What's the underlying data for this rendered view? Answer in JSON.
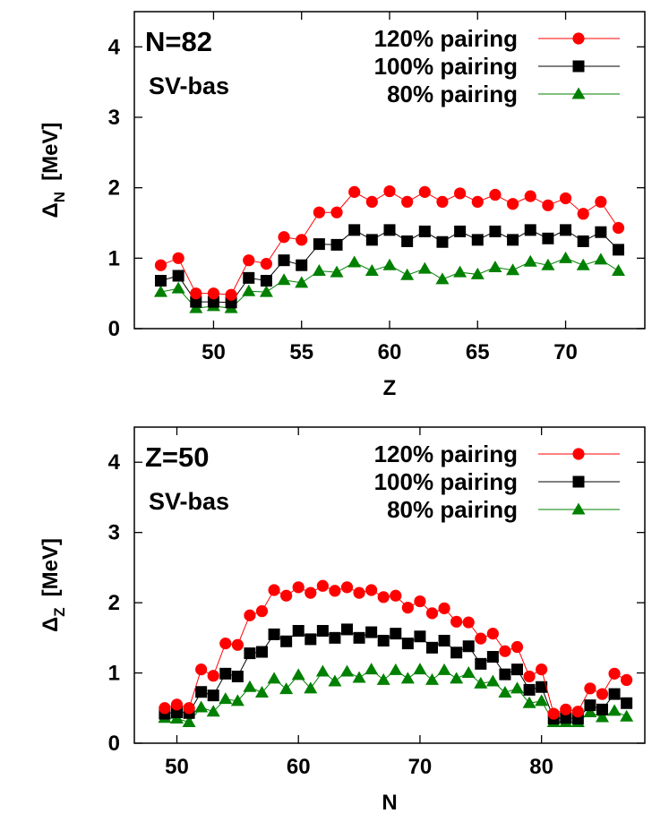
{
  "chart_data": [
    {
      "type": "line",
      "panel_label": "N=82",
      "panel_sublabel": "SV-bas",
      "xlabel": "Z",
      "ylabel_main": "Δ",
      "ylabel_sub": "N",
      "ylabel_unit": "[MeV]",
      "xlim": [
        45.5,
        74.5
      ],
      "ylim": [
        0,
        4.5
      ],
      "xticks": [
        50,
        55,
        60,
        65,
        70
      ],
      "yticks": [
        0,
        1,
        2,
        3,
        4
      ],
      "grid": false,
      "legend": "top-right",
      "x": [
        47,
        48,
        49,
        50,
        51,
        52,
        53,
        54,
        55,
        56,
        57,
        58,
        59,
        60,
        61,
        62,
        63,
        64,
        65,
        66,
        67,
        68,
        69,
        70,
        71,
        72,
        73
      ],
      "series": [
        {
          "name": "120% pairing",
          "color": "#ff0000",
          "marker": "circle",
          "values": [
            0.9,
            1.0,
            0.5,
            0.5,
            0.48,
            0.97,
            0.92,
            1.3,
            1.26,
            1.65,
            1.65,
            1.94,
            1.8,
            1.95,
            1.8,
            1.94,
            1.8,
            1.92,
            1.8,
            1.9,
            1.77,
            1.88,
            1.75,
            1.85,
            1.63,
            1.8,
            1.43
          ]
        },
        {
          "name": "100% pairing",
          "color": "#000000",
          "marker": "square",
          "values": [
            0.68,
            0.75,
            0.38,
            0.38,
            0.37,
            0.72,
            0.68,
            0.97,
            0.9,
            1.2,
            1.19,
            1.4,
            1.26,
            1.4,
            1.24,
            1.38,
            1.23,
            1.38,
            1.26,
            1.38,
            1.26,
            1.4,
            1.28,
            1.4,
            1.24,
            1.37,
            1.12
          ]
        },
        {
          "name": "80% pairing",
          "color": "#008000",
          "marker": "triangle",
          "values": [
            0.52,
            0.57,
            0.29,
            0.32,
            0.29,
            0.53,
            0.52,
            0.69,
            0.65,
            0.82,
            0.8,
            0.94,
            0.82,
            0.9,
            0.76,
            0.85,
            0.7,
            0.8,
            0.77,
            0.87,
            0.83,
            0.95,
            0.9,
            1.0,
            0.9,
            0.98,
            0.82
          ]
        }
      ]
    },
    {
      "type": "line",
      "panel_label": "Z=50",
      "panel_sublabel": "SV-bas",
      "xlabel": "N",
      "ylabel_main": "Δ",
      "ylabel_sub": "Z",
      "ylabel_unit": "[MeV]",
      "xlim": [
        46.5,
        88.5
      ],
      "ylim": [
        0,
        4.5
      ],
      "xticks": [
        50,
        60,
        70,
        80
      ],
      "yticks": [
        0,
        1,
        2,
        3,
        4
      ],
      "grid": false,
      "legend": "top-right",
      "x": [
        49,
        50,
        51,
        52,
        53,
        54,
        55,
        56,
        57,
        58,
        59,
        60,
        61,
        62,
        63,
        64,
        65,
        66,
        67,
        68,
        69,
        70,
        71,
        72,
        73,
        74,
        75,
        76,
        77,
        78,
        79,
        80,
        81,
        82,
        83,
        84,
        85,
        86,
        87
      ],
      "series": [
        {
          "name": "120% pairing",
          "color": "#ff0000",
          "marker": "circle",
          "values": [
            0.5,
            0.55,
            0.5,
            1.05,
            0.96,
            1.42,
            1.4,
            1.82,
            1.88,
            2.18,
            2.1,
            2.22,
            2.14,
            2.24,
            2.17,
            2.22,
            2.14,
            2.18,
            2.08,
            2.1,
            1.93,
            2.02,
            1.85,
            1.92,
            1.73,
            1.72,
            1.49,
            1.56,
            1.31,
            1.37,
            0.95,
            1.05,
            0.42,
            0.48,
            0.45,
            0.78,
            0.7,
            0.99,
            0.9
          ]
        },
        {
          "name": "100% pairing",
          "color": "#000000",
          "marker": "square",
          "values": [
            0.42,
            0.44,
            0.43,
            0.73,
            0.68,
            0.99,
            0.95,
            1.28,
            1.3,
            1.55,
            1.45,
            1.6,
            1.48,
            1.6,
            1.5,
            1.62,
            1.5,
            1.58,
            1.46,
            1.56,
            1.42,
            1.52,
            1.36,
            1.46,
            1.29,
            1.38,
            1.13,
            1.23,
            0.98,
            1.05,
            0.76,
            0.8,
            0.35,
            0.36,
            0.35,
            0.54,
            0.48,
            0.7,
            0.57
          ]
        },
        {
          "name": "80% pairing",
          "color": "#008000",
          "marker": "triangle",
          "values": [
            0.36,
            0.35,
            0.3,
            0.51,
            0.45,
            0.63,
            0.6,
            0.8,
            0.72,
            0.92,
            0.77,
            0.97,
            0.78,
            1.02,
            0.88,
            1.02,
            0.93,
            1.05,
            0.9,
            1.04,
            0.92,
            1.05,
            0.9,
            1.04,
            0.92,
            1.0,
            0.85,
            0.88,
            0.72,
            0.78,
            0.57,
            0.6,
            0.3,
            0.3,
            0.3,
            0.44,
            0.37,
            0.46,
            0.38
          ]
        }
      ]
    }
  ]
}
